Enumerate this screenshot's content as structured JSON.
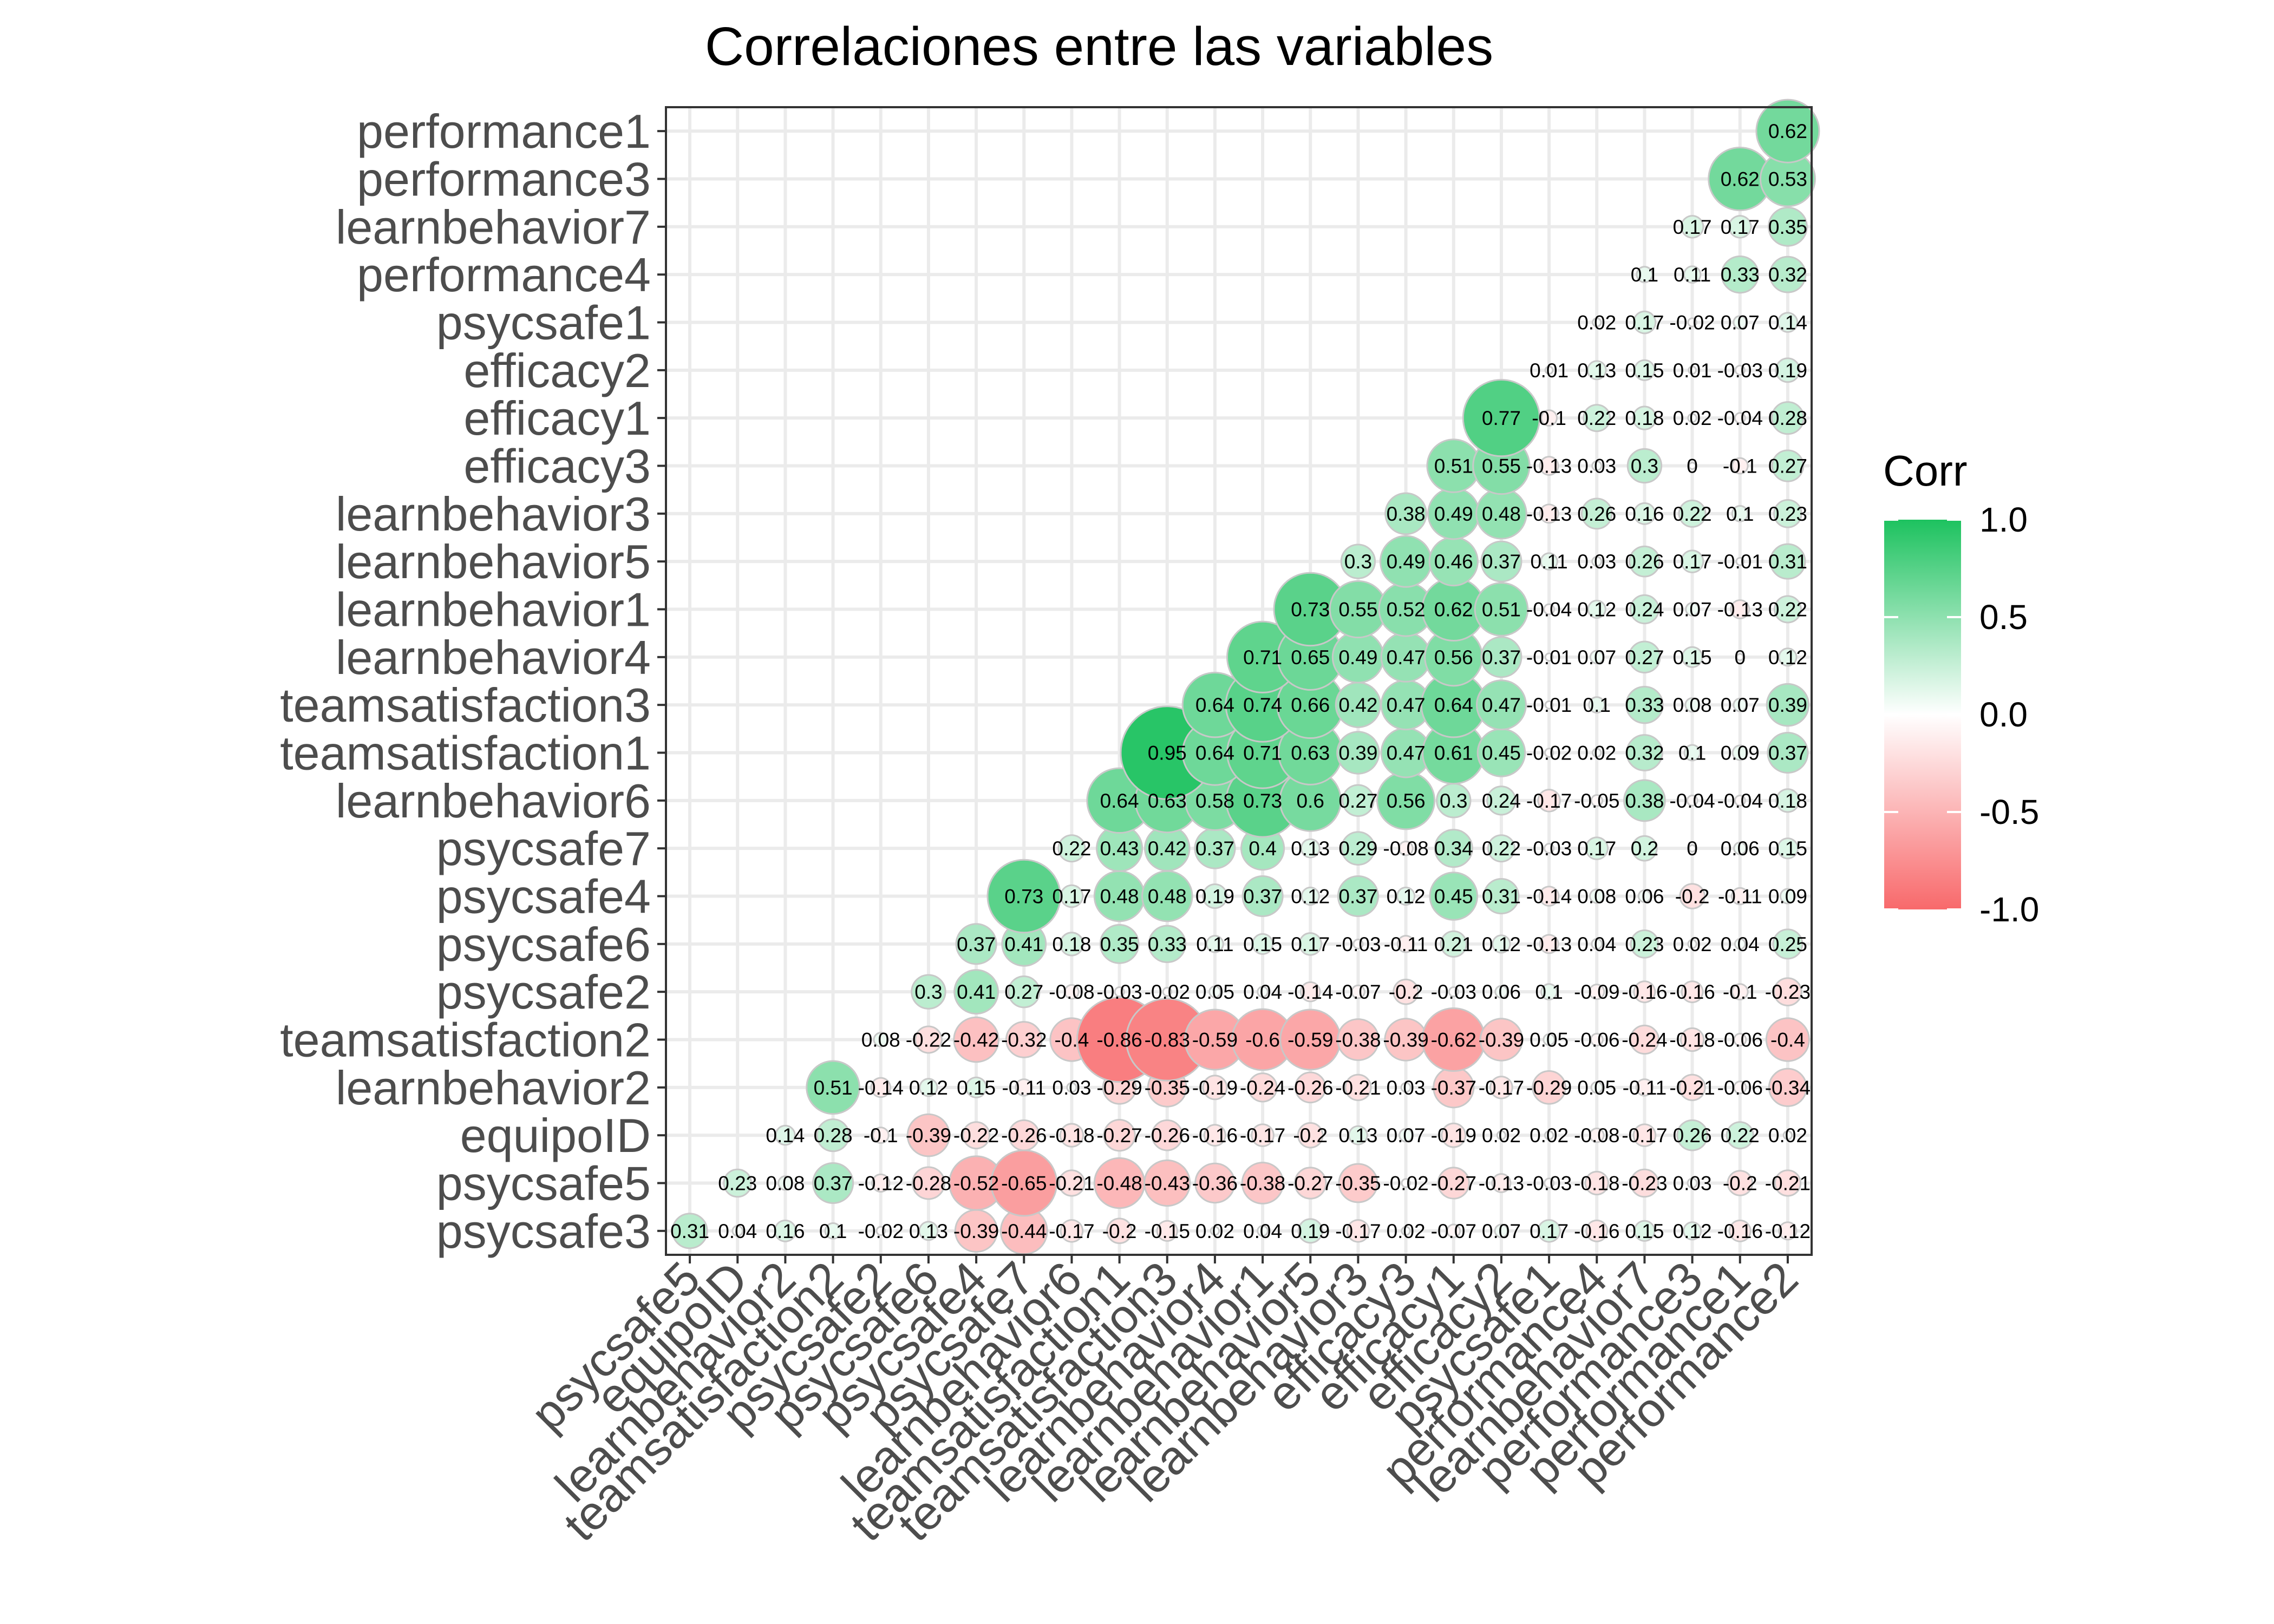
{
  "chart_data": {
    "type": "heatmap",
    "title": "Correlaciones entre las variables",
    "x_categories": [
      "psycsafe5",
      "equipoID",
      "learnbehavior2",
      "teamsatisfaction2",
      "psycsafe2",
      "psycsafe6",
      "psycsafe4",
      "psycsafe7",
      "learnbehavior6",
      "teamsatisfaction1",
      "teamsatisfaction3",
      "learnbehavior4",
      "learnbehavior1",
      "learnbehavior5",
      "learnbehavior3",
      "efficacy3",
      "efficacy1",
      "efficacy2",
      "psycsafe1",
      "performance4",
      "learnbehavior7",
      "performance3",
      "performance1",
      "performance2"
    ],
    "y_categories": [
      "psycsafe3",
      "psycsafe5",
      "equipoID",
      "learnbehavior2",
      "teamsatisfaction2",
      "psycsafe2",
      "psycsafe6",
      "psycsafe4",
      "psycsafe7",
      "learnbehavior6",
      "teamsatisfaction1",
      "teamsatisfaction3",
      "learnbehavior4",
      "learnbehavior1",
      "learnbehavior5",
      "learnbehavior3",
      "efficacy3",
      "efficacy1",
      "efficacy2",
      "psycsafe1",
      "performance4",
      "learnbehavior7",
      "performance3",
      "performance1"
    ],
    "rows": [
      [
        0.31,
        0.04,
        0.16,
        0.1,
        -0.02,
        0.13,
        -0.39,
        -0.44,
        -0.17,
        -0.2,
        -0.15,
        0.02,
        0.04,
        0.19,
        -0.17,
        0.02,
        -0.07,
        0.07,
        0.17,
        -0.16,
        0.15,
        0.12,
        -0.16,
        -0.12
      ],
      [
        0.23,
        0.08,
        0.37,
        -0.12,
        -0.28,
        -0.52,
        -0.65,
        -0.21,
        -0.48,
        -0.43,
        -0.36,
        -0.38,
        -0.27,
        -0.35,
        -0.02,
        -0.27,
        -0.13,
        -0.03,
        -0.18,
        -0.23,
        0.03,
        -0.2,
        -0.21
      ],
      [
        0.14,
        0.28,
        -0.1,
        -0.39,
        -0.22,
        -0.26,
        -0.18,
        -0.27,
        -0.26,
        -0.16,
        -0.17,
        -0.2,
        0.13,
        0.07,
        -0.19,
        0.02,
        0.02,
        -0.08,
        -0.17,
        0.26,
        0.22,
        0.02
      ],
      [
        0.51,
        -0.14,
        0.12,
        0.15,
        -0.11,
        0.03,
        -0.29,
        -0.35,
        -0.19,
        -0.24,
        -0.26,
        -0.21,
        0.03,
        -0.37,
        -0.17,
        -0.29,
        0.05,
        -0.11,
        -0.21,
        -0.06,
        -0.34
      ],
      [
        0.08,
        -0.22,
        -0.42,
        -0.32,
        -0.4,
        -0.86,
        -0.83,
        -0.59,
        -0.6,
        -0.59,
        -0.38,
        -0.39,
        -0.62,
        -0.39,
        0.05,
        -0.06,
        -0.24,
        -0.18,
        -0.06,
        -0.4
      ],
      [
        0.3,
        0.41,
        0.27,
        -0.08,
        -0.03,
        -0.02,
        0.05,
        0.04,
        -0.14,
        -0.07,
        -0.2,
        -0.03,
        0.06,
        0.1,
        -0.09,
        -0.16,
        -0.16,
        -0.1,
        -0.23
      ],
      [
        0.37,
        0.41,
        0.18,
        0.35,
        0.33,
        0.11,
        0.15,
        0.17,
        -0.03,
        -0.11,
        0.21,
        0.12,
        -0.13,
        0.04,
        0.23,
        0.02,
        0.04,
        0.25
      ],
      [
        0.73,
        0.17,
        0.48,
        0.48,
        0.19,
        0.37,
        0.12,
        0.37,
        0.12,
        0.45,
        0.31,
        -0.14,
        0.08,
        0.06,
        -0.2,
        -0.11,
        0.09
      ],
      [
        0.22,
        0.43,
        0.42,
        0.37,
        0.4,
        0.13,
        0.29,
        -0.08,
        0.34,
        0.22,
        -0.03,
        0.17,
        0.2,
        0,
        0.06,
        0.15
      ],
      [
        0.64,
        0.63,
        0.58,
        0.73,
        0.6,
        0.27,
        0.56,
        0.3,
        0.24,
        -0.17,
        -0.05,
        0.38,
        -0.04,
        -0.04,
        0.18
      ],
      [
        0.95,
        0.64,
        0.71,
        0.63,
        0.39,
        0.47,
        0.61,
        0.45,
        -0.02,
        0.02,
        0.32,
        0.1,
        0.09,
        0.37
      ],
      [
        0.64,
        0.74,
        0.66,
        0.42,
        0.47,
        0.64,
        0.47,
        -0.01,
        0.1,
        0.33,
        0.08,
        0.07,
        0.39
      ],
      [
        0.71,
        0.65,
        0.49,
        0.47,
        0.56,
        0.37,
        -0.01,
        0.07,
        0.27,
        0.15,
        0,
        0.12
      ],
      [
        0.73,
        0.55,
        0.52,
        0.62,
        0.51,
        -0.04,
        0.12,
        0.24,
        0.07,
        -0.13,
        0.22
      ],
      [
        0.3,
        0.49,
        0.46,
        0.37,
        0.11,
        0.03,
        0.26,
        0.17,
        -0.01,
        0.31
      ],
      [
        0.38,
        0.49,
        0.48,
        -0.13,
        0.26,
        0.16,
        0.22,
        0.1,
        0.23
      ],
      [
        0.51,
        0.55,
        -0.13,
        0.03,
        0.3,
        0,
        -0.1,
        0.27
      ],
      [
        0.77,
        -0.1,
        0.22,
        0.18,
        0.02,
        -0.04,
        0.28
      ],
      [
        0.01,
        0.13,
        0.15,
        0.01,
        -0.03,
        0.19
      ],
      [
        0.02,
        0.17,
        -0.02,
        0.07,
        0.14
      ],
      [
        0.1,
        0.11,
        0.33,
        0.32
      ],
      [
        0.17,
        0.17,
        0.35
      ],
      [
        0.62,
        0.53
      ],
      [
        0.62
      ]
    ],
    "legend": {
      "title": "Corr",
      "position": "right",
      "ticks": [
        "1.0",
        "0.5",
        "0.0",
        "-0.5",
        "-1.0"
      ],
      "low_color": "#F8696B",
      "mid_color": "#FFFFFF",
      "high_color": "#1DC25F"
    },
    "grid": true,
    "xlabel": "",
    "ylabel": ""
  }
}
